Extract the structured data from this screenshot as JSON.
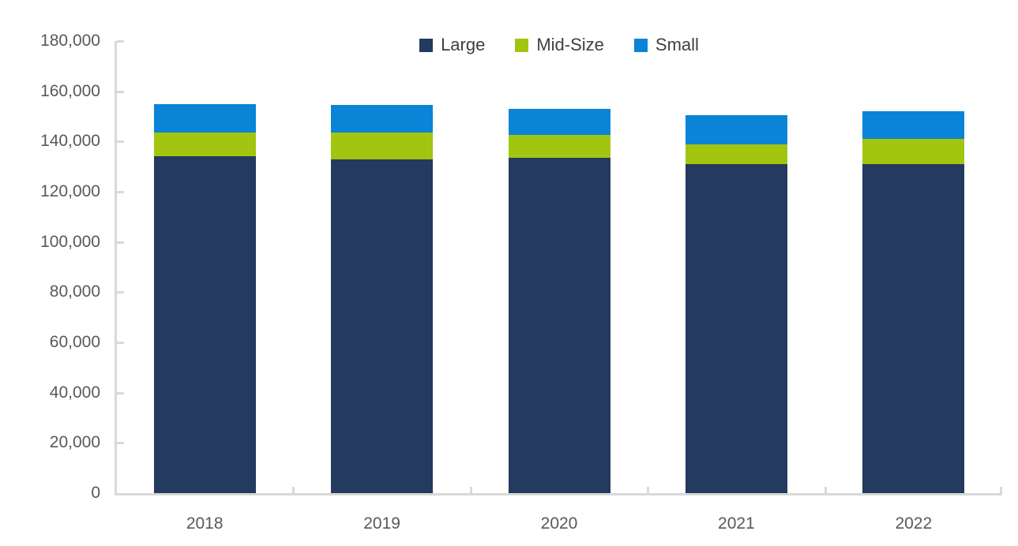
{
  "chart_data": {
    "type": "bar",
    "stacked": true,
    "title": "",
    "xlabel": "",
    "ylabel": "",
    "categories": [
      "2018",
      "2019",
      "2020",
      "2021",
      "2022"
    ],
    "series": [
      {
        "name": "Large",
        "color": "#243a5e",
        "values": [
          134000,
          133000,
          133500,
          131000,
          131000
        ]
      },
      {
        "name": "Mid-Size",
        "color": "#a2c510",
        "values": [
          9500,
          10500,
          9000,
          8000,
          10000
        ]
      },
      {
        "name": "Small",
        "color": "#0984d6",
        "values": [
          11500,
          11000,
          10500,
          11500,
          11000
        ]
      }
    ],
    "totals": [
      155000,
      154500,
      153000,
      150500,
      152000
    ],
    "ylim": [
      0,
      180000
    ],
    "ytick_step": 20000,
    "ytick_labels": [
      "0",
      "20,000",
      "40,000",
      "60,000",
      "80,000",
      "100,000",
      "120,000",
      "140,000",
      "160,000",
      "180,000"
    ],
    "grid": false,
    "legend_position": "top-center",
    "tick_style": "inside",
    "colors": {
      "axis_line": "#d9d9d9",
      "axis_label": "#595959",
      "legend_label": "#404040",
      "background": "#ffffff"
    }
  },
  "legend": {
    "items": [
      {
        "label": "Large",
        "color": "#243a5e"
      },
      {
        "label": "Mid-Size",
        "color": "#a2c510"
      },
      {
        "label": "Small",
        "color": "#0984d6"
      }
    ]
  }
}
